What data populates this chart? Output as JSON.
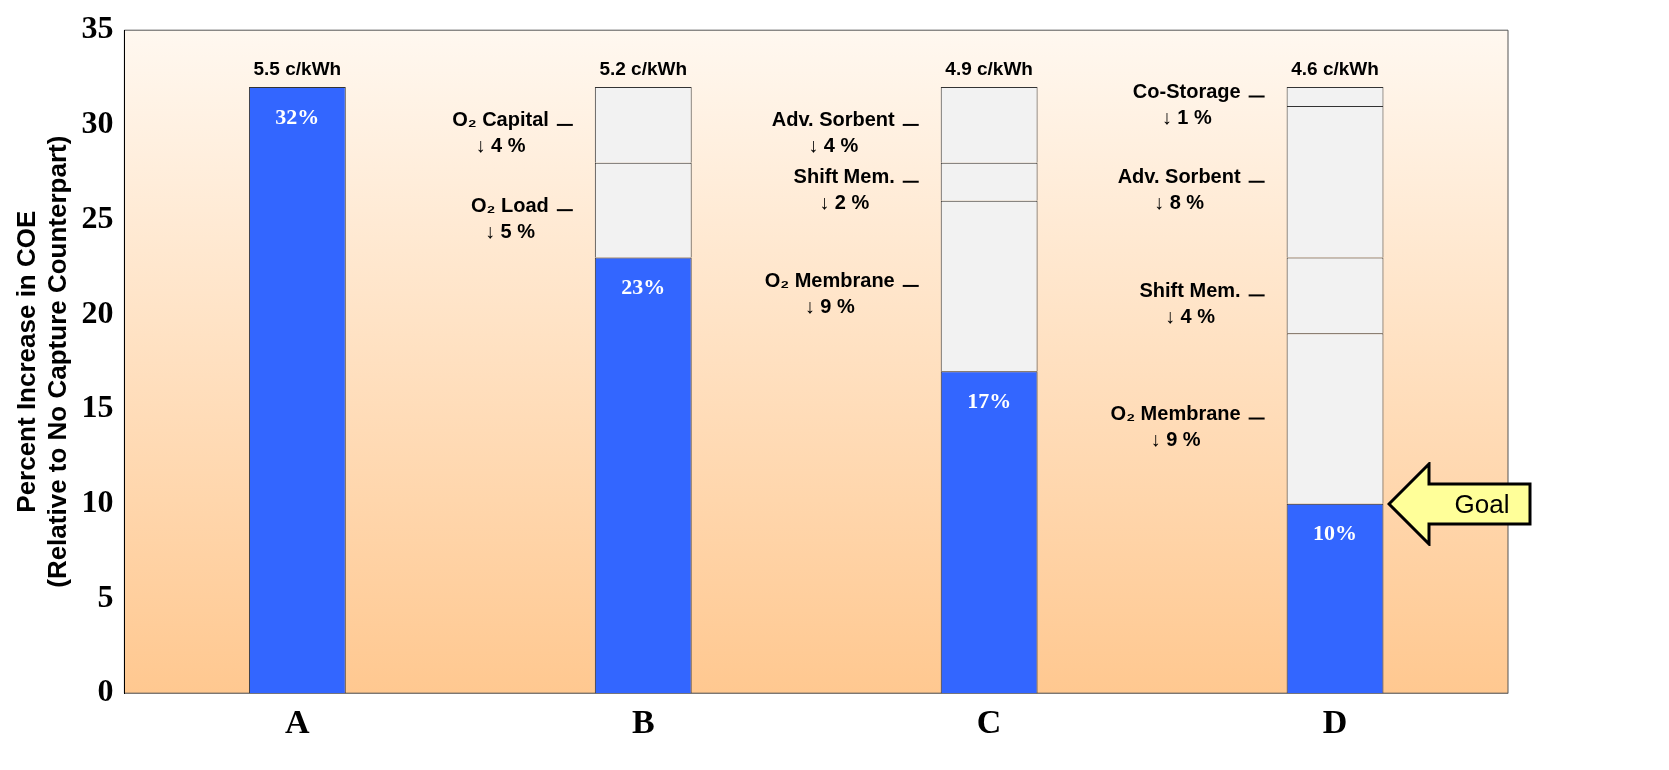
{
  "chart_data": {
    "type": "bar",
    "stacked": true,
    "ylabel": "Percent Increase in COE\n(Relative to No Capture Counterpart)",
    "categories": [
      "A",
      "B",
      "C",
      "D"
    ],
    "series": [
      {
        "color": "#3366ff",
        "values": [
          32,
          23,
          17,
          10
        ],
        "value_labels": [
          "32%",
          "23%",
          "17%",
          "10%"
        ]
      },
      {
        "color": "#f2f2f2",
        "values": [
          null,
          5,
          9,
          9
        ]
      },
      {
        "color": "#f2f2f2",
        "values": [
          null,
          4,
          2,
          4
        ]
      },
      {
        "color": "#f2f2f2",
        "values": [
          null,
          null,
          4,
          8
        ]
      },
      {
        "color": "#f2f2f2",
        "values": [
          null,
          null,
          null,
          1
        ]
      }
    ],
    "ylim": [
      0,
      35
    ],
    "yticks": [
      0,
      5,
      10,
      15,
      20,
      25,
      30,
      35
    ],
    "grid": false,
    "legend": false,
    "annotations": [
      {
        "text": "5.5 c/kWh",
        "x": "A",
        "y": 32
      },
      {
        "text": "5.2 c/kWh",
        "x": "B",
        "y": 32
      },
      {
        "text": "4.9 c/kWh",
        "x": "C",
        "y": 32
      },
      {
        "text": "4.6 c/kWh",
        "x": "D",
        "y": 32
      },
      "O₂ Capital\n↓ 4 %",
      "O₂ Load\n↓ 5 %",
      "Adv. Sorbent\n↓ 4 %",
      "Shift Mem.\n↓ 2 %",
      "O₂ Membrane\n↓ 9 %",
      "Co-Storage\n↓ 1 %",
      "Adv. Sorbent\n↓ 8 %",
      "Shift Mem.\n↓ 4 %",
      "O₂ Membrane\n↓ 9 %",
      "Goal"
    ]
  }
}
